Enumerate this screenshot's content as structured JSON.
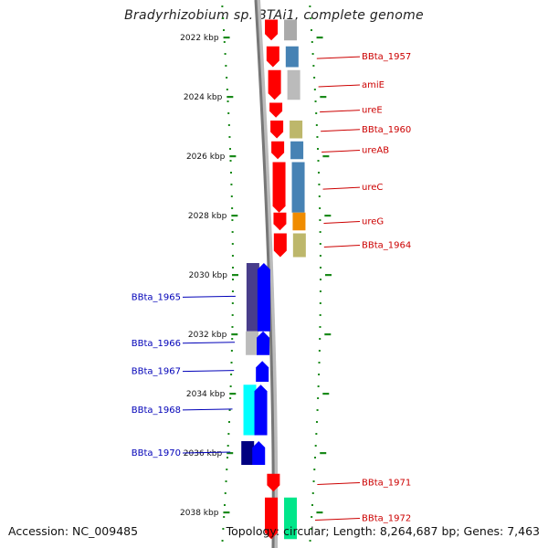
{
  "title": "Bradyrhizobium sp. BTAi1, complete genome",
  "footer": {
    "accession": "Accession: NC_009485",
    "summary": "Topology: circular; Length: 8,264,687 bp; Genes: 7,463"
  },
  "ticks": [
    "2022 kbp",
    "2024 kbp",
    "2026 kbp",
    "2028 kbp",
    "2030 kbp",
    "2032 kbp",
    "2034 kbp",
    "2036 kbp",
    "2038 kbp"
  ],
  "forward_genes": [
    {
      "label": "",
      "color": "#ff0000",
      "start": 2021.4,
      "end": 2022.1
    },
    {
      "label": "BBta_1957",
      "color": "#ff0000",
      "start": 2022.3,
      "end": 2023.0
    },
    {
      "label": "amiE",
      "color": "#ff0000",
      "start": 2023.1,
      "end": 2024.1
    },
    {
      "label": "ureE",
      "color": "#ff0000",
      "start": 2024.2,
      "end": 2024.7
    },
    {
      "label": "BBta_1960",
      "color": "#ff0000",
      "start": 2024.8,
      "end": 2025.4
    },
    {
      "label": "ureAB",
      "color": "#ff0000",
      "start": 2025.5,
      "end": 2026.1
    },
    {
      "label": "ureC",
      "color": "#ff0000",
      "start": 2026.2,
      "end": 2027.9
    },
    {
      "label": "ureG",
      "color": "#ff0000",
      "start": 2027.9,
      "end": 2028.5
    },
    {
      "label": "BBta_1964",
      "color": "#ff0000",
      "start": 2028.6,
      "end": 2029.4
    },
    {
      "label": "BBta_1971",
      "color": "#ff0000",
      "start": 2036.7,
      "end": 2037.3
    },
    {
      "label": "BBta_1972",
      "color": "#ff0000",
      "start": 2037.5,
      "end": 2038.9
    }
  ],
  "forward_cogs": [
    {
      "color": "#aaaaaa",
      "start": 2021.4,
      "end": 2022.1
    },
    {
      "color": "#4682b4",
      "start": 2022.3,
      "end": 2023.0
    },
    {
      "color": "#bbbbbb",
      "start": 2023.1,
      "end": 2024.1
    },
    {
      "color": "#bdb76b",
      "start": 2024.8,
      "end": 2025.4
    },
    {
      "color": "#4682b4",
      "start": 2025.5,
      "end": 2026.1
    },
    {
      "color": "#4682b4",
      "start": 2026.2,
      "end": 2027.9
    },
    {
      "color": "#f08c00",
      "start": 2027.9,
      "end": 2028.5
    },
    {
      "color": "#bdb76b",
      "start": 2028.6,
      "end": 2029.4
    },
    {
      "color": "#00e68a",
      "start": 2037.5,
      "end": 2038.9
    }
  ],
  "reverse_genes": [
    {
      "label": "BBta_1965",
      "color": "#0000ff",
      "start": 2029.6,
      "end": 2031.9
    },
    {
      "label": "BBta_1966",
      "color": "#0000ff",
      "start": 2031.9,
      "end": 2032.7
    },
    {
      "label": "BBta_1967",
      "color": "#0000ff",
      "start": 2032.9,
      "end": 2033.6
    },
    {
      "label": "BBta_1968",
      "color": "#0000ff",
      "start": 2033.7,
      "end": 2035.4
    },
    {
      "label": "BBta_1970",
      "color": "#0000ff",
      "start": 2035.6,
      "end": 2036.4
    }
  ],
  "reverse_cogs": [
    {
      "color": "#483d8b",
      "start": 2029.6,
      "end": 2031.9
    },
    {
      "color": "#bbbbbb",
      "start": 2031.9,
      "end": 2032.7
    },
    {
      "color": "#00ffff",
      "start": 2033.7,
      "end": 2035.4
    },
    {
      "color": "#000080",
      "start": 2035.6,
      "end": 2036.4
    }
  ]
}
